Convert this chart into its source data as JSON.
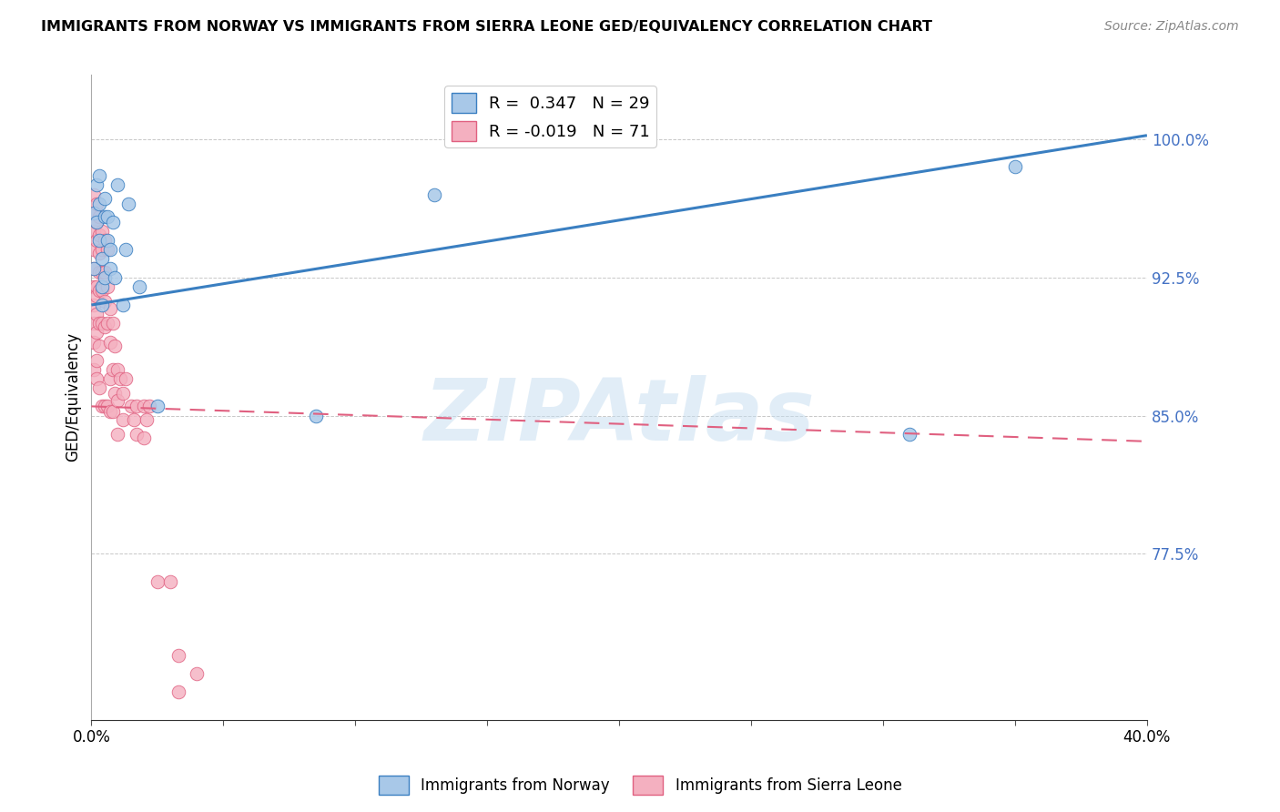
{
  "title": "IMMIGRANTS FROM NORWAY VS IMMIGRANTS FROM SIERRA LEONE GED/EQUIVALENCY CORRELATION CHART",
  "source": "Source: ZipAtlas.com",
  "ylabel": "GED/Equivalency",
  "xlim": [
    0.0,
    0.4
  ],
  "ylim": [
    0.685,
    1.035
  ],
  "yticks": [
    0.775,
    0.85,
    0.925,
    1.0
  ],
  "ytick_labels": [
    "77.5%",
    "85.0%",
    "92.5%",
    "100.0%"
  ],
  "xticks": [
    0.0,
    0.05,
    0.1,
    0.15,
    0.2,
    0.25,
    0.3,
    0.35,
    0.4
  ],
  "norway_R": 0.347,
  "norway_N": 29,
  "sierra_leone_R": -0.019,
  "sierra_leone_N": 71,
  "norway_color": "#a8c8e8",
  "norway_line_color": "#3a7fc1",
  "sierra_leone_color": "#f4b0c0",
  "sierra_leone_line_color": "#e06080",
  "watermark": "ZIPAtlas",
  "norway_line_x": [
    0.0,
    0.4
  ],
  "norway_line_y": [
    0.91,
    1.002
  ],
  "sierra_line_x": [
    0.0,
    0.4
  ],
  "sierra_line_y": [
    0.855,
    0.836
  ],
  "norway_x": [
    0.001,
    0.001,
    0.002,
    0.002,
    0.003,
    0.003,
    0.003,
    0.004,
    0.004,
    0.004,
    0.005,
    0.005,
    0.005,
    0.006,
    0.006,
    0.007,
    0.007,
    0.008,
    0.009,
    0.01,
    0.012,
    0.013,
    0.014,
    0.018,
    0.025,
    0.085,
    0.13,
    0.31,
    0.35
  ],
  "norway_y": [
    0.96,
    0.93,
    0.975,
    0.955,
    0.98,
    0.965,
    0.945,
    0.92,
    0.91,
    0.935,
    0.968,
    0.958,
    0.925,
    0.958,
    0.945,
    0.94,
    0.93,
    0.955,
    0.925,
    0.975,
    0.91,
    0.94,
    0.965,
    0.92,
    0.855,
    0.85,
    0.97,
    0.84,
    0.985
  ],
  "sierra_leone_x": [
    0.001,
    0.001,
    0.001,
    0.001,
    0.001,
    0.001,
    0.001,
    0.001,
    0.001,
    0.001,
    0.002,
    0.002,
    0.002,
    0.002,
    0.002,
    0.002,
    0.002,
    0.002,
    0.002,
    0.003,
    0.003,
    0.003,
    0.003,
    0.003,
    0.003,
    0.003,
    0.003,
    0.004,
    0.004,
    0.004,
    0.004,
    0.004,
    0.004,
    0.005,
    0.005,
    0.005,
    0.005,
    0.005,
    0.006,
    0.006,
    0.006,
    0.006,
    0.007,
    0.007,
    0.007,
    0.007,
    0.008,
    0.008,
    0.008,
    0.009,
    0.009,
    0.01,
    0.01,
    0.01,
    0.011,
    0.012,
    0.012,
    0.013,
    0.015,
    0.016,
    0.017,
    0.017,
    0.02,
    0.02,
    0.021,
    0.022,
    0.025,
    0.03,
    0.033,
    0.033,
    0.04
  ],
  "sierra_leone_y": [
    0.97,
    0.96,
    0.95,
    0.94,
    0.93,
    0.92,
    0.91,
    0.9,
    0.89,
    0.875,
    0.965,
    0.955,
    0.945,
    0.92,
    0.915,
    0.905,
    0.895,
    0.88,
    0.87,
    0.958,
    0.948,
    0.938,
    0.928,
    0.918,
    0.9,
    0.888,
    0.865,
    0.95,
    0.94,
    0.928,
    0.918,
    0.9,
    0.855,
    0.945,
    0.928,
    0.912,
    0.898,
    0.855,
    0.94,
    0.92,
    0.9,
    0.855,
    0.908,
    0.89,
    0.87,
    0.852,
    0.9,
    0.875,
    0.852,
    0.888,
    0.862,
    0.875,
    0.858,
    0.84,
    0.87,
    0.862,
    0.848,
    0.87,
    0.855,
    0.848,
    0.855,
    0.84,
    0.855,
    0.838,
    0.848,
    0.855,
    0.76,
    0.76,
    0.72,
    0.7,
    0.71
  ]
}
